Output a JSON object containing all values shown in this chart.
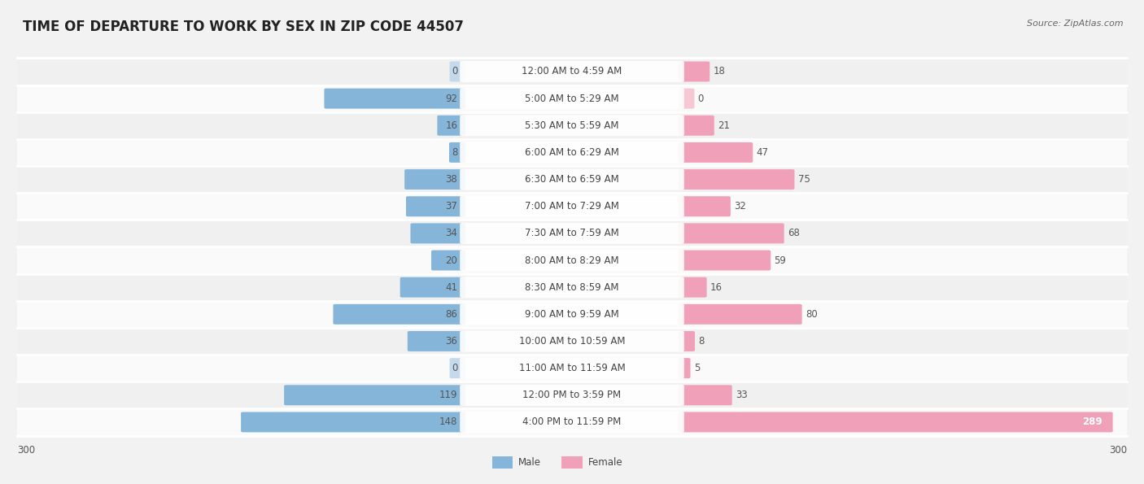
{
  "title": "TIME OF DEPARTURE TO WORK BY SEX IN ZIP CODE 44507",
  "source": "Source: ZipAtlas.com",
  "categories": [
    "12:00 AM to 4:59 AM",
    "5:00 AM to 5:29 AM",
    "5:30 AM to 5:59 AM",
    "6:00 AM to 6:29 AM",
    "6:30 AM to 6:59 AM",
    "7:00 AM to 7:29 AM",
    "7:30 AM to 7:59 AM",
    "8:00 AM to 8:29 AM",
    "8:30 AM to 8:59 AM",
    "9:00 AM to 9:59 AM",
    "10:00 AM to 10:59 AM",
    "11:00 AM to 11:59 AM",
    "12:00 PM to 3:59 PM",
    "4:00 PM to 11:59 PM"
  ],
  "male_values": [
    0,
    92,
    16,
    8,
    38,
    37,
    34,
    20,
    41,
    86,
    36,
    0,
    119,
    148
  ],
  "female_values": [
    18,
    0,
    21,
    47,
    75,
    32,
    68,
    59,
    16,
    80,
    8,
    5,
    33,
    289
  ],
  "male_color": "#85b5d9",
  "female_color": "#f0a0b8",
  "male_color_light": "#c5d9ec",
  "female_color_light": "#f7c8d4",
  "axis_max": 300,
  "title_fontsize": 12,
  "label_fontsize": 8.5,
  "source_fontsize": 8,
  "row_colors": [
    "#f0f0f0",
    "#fafafa"
  ],
  "white_color": "#ffffff"
}
